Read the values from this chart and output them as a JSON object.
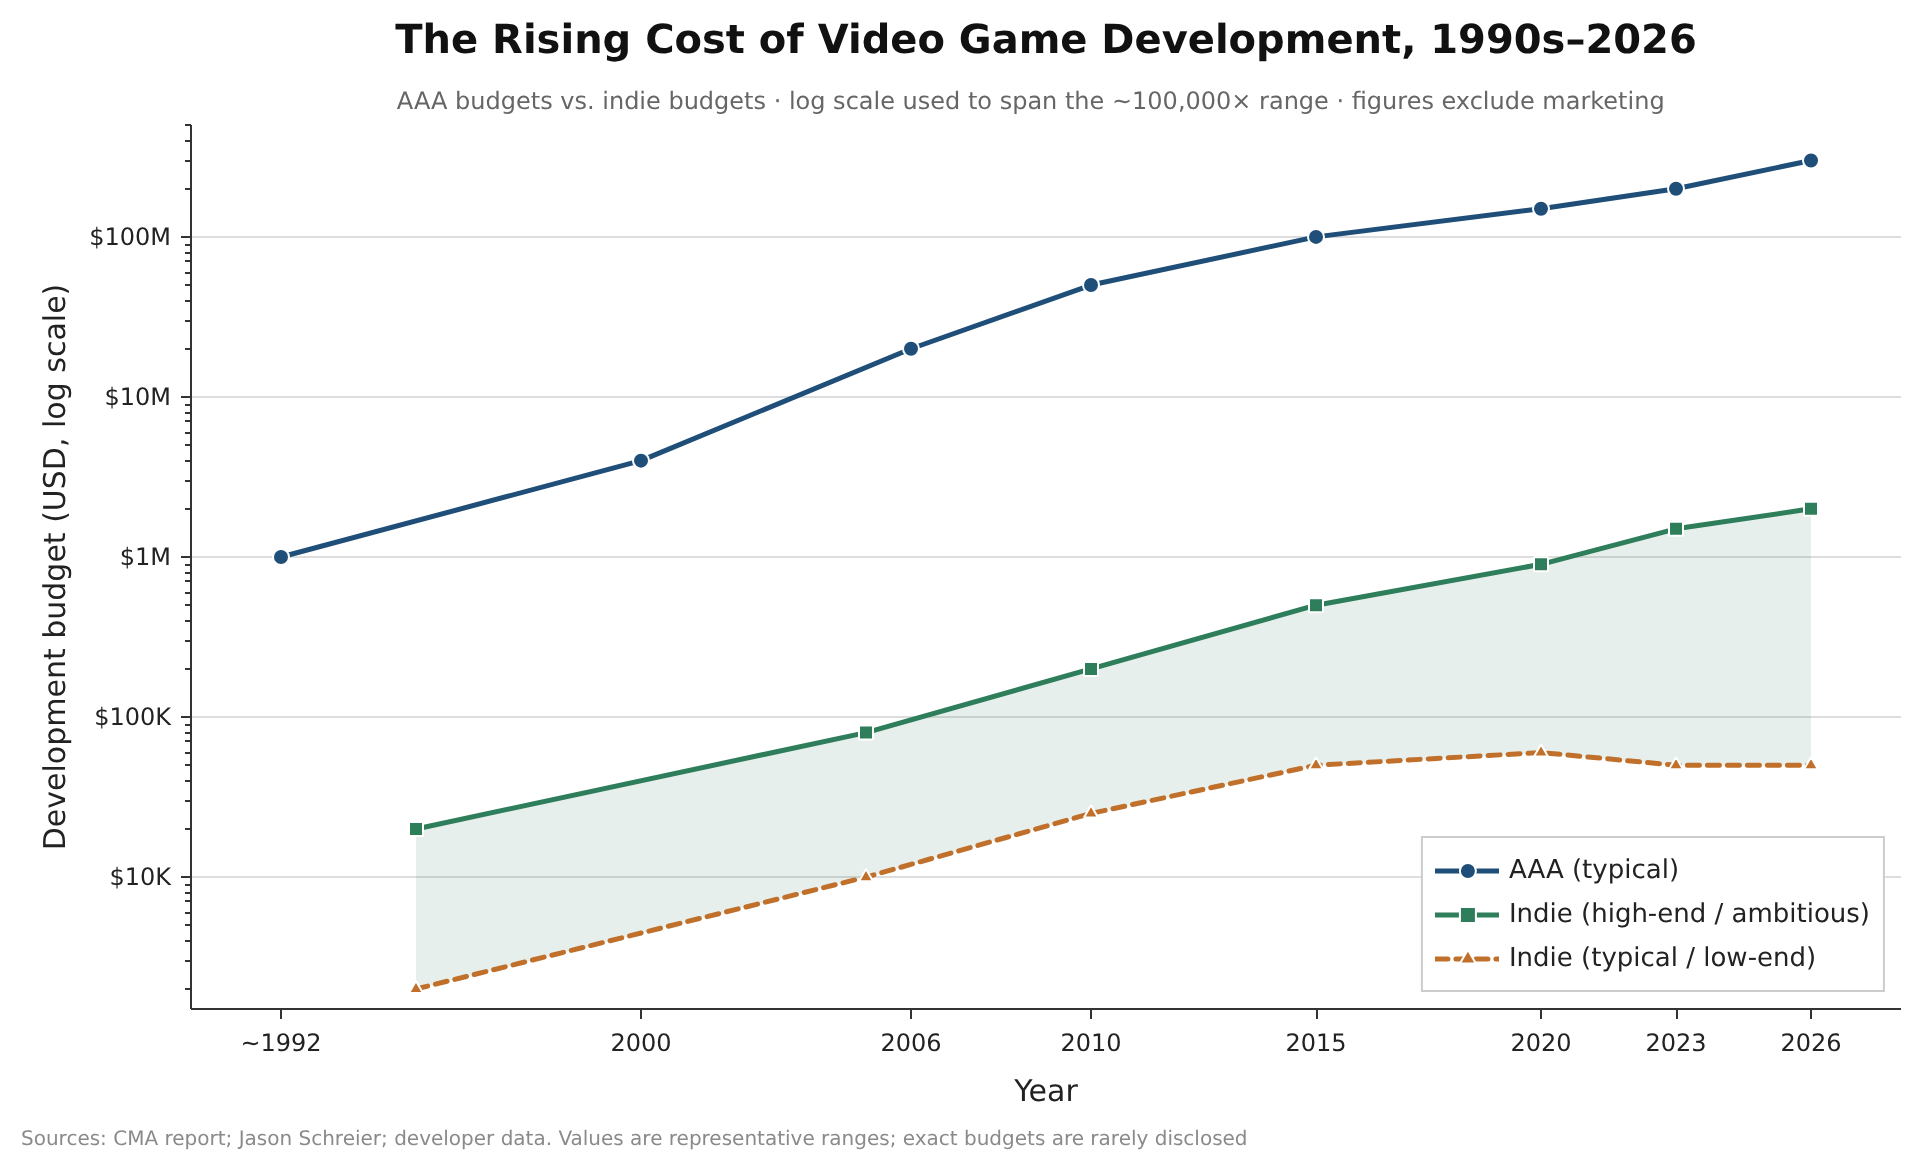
{
  "chart_data": {
    "type": "line",
    "title": "The Rising Cost of Video Game Development, 1990s–2026",
    "subtitle": "AAA budgets vs. indie budgets  ·  log scale used to span the ~100,000× range  ·  figures exclude marketing",
    "xlabel": "Year",
    "ylabel": "Development budget (USD, log scale)",
    "annotations": [
      "Sources: CMA report; Jason Schreier; developer data. Values are representative ranges; exact budgets are rarely disclosed"
    ],
    "series": [
      {
        "name": "AAA (typical)",
        "color": "#1f4e79",
        "marker": "circle",
        "line_style": "solid",
        "x": [
          1992,
          2000,
          2006,
          2010,
          2015,
          2020,
          2023,
          2026
        ],
        "values": [
          1000000,
          4000000,
          20000000,
          50000000,
          100000000,
          150000000,
          200000000,
          300000000
        ]
      },
      {
        "name": "Indie (high-end / ambitious)",
        "color": "#2e7d5b",
        "marker": "square",
        "line_style": "solid",
        "x": [
          1995,
          2005,
          2010,
          2015,
          2020,
          2023,
          2026
        ],
        "values": [
          20000,
          80000,
          200000,
          500000,
          900000,
          1500000,
          2000000
        ],
        "lower": [
          2000,
          10000,
          25000,
          50000,
          60000,
          50000,
          50000
        ],
        "upper": [
          20000,
          80000,
          200000,
          500000,
          900000,
          1500000,
          2000000
        ]
      },
      {
        "name": "Indie (typical / low-end)",
        "color": "#c0702a",
        "marker": "triangle",
        "line_style": "dashed",
        "x": [
          1995,
          2005,
          2010,
          2015,
          2020,
          2023,
          2026
        ],
        "values": [
          2000,
          10000,
          25000,
          50000,
          60000,
          50000,
          50000
        ]
      }
    ],
    "xlim": [
      1990,
      2028
    ],
    "ylim": [
      1500,
      500000000
    ],
    "xticks": [
      {
        "value": 1992,
        "label": "~1992"
      },
      2000,
      2006,
      2010,
      2015,
      2020,
      2023,
      2026
    ],
    "yticks": [
      {
        "value": 10000,
        "label": "$10K"
      },
      {
        "value": 100000,
        "label": "$100K"
      },
      {
        "value": 1000000,
        "label": "$1M"
      },
      {
        "value": 10000000,
        "label": "$10M"
      },
      {
        "value": 100000000,
        "label": "$100M"
      }
    ],
    "log": "y",
    "grid": "y",
    "legend": "bottom right"
  }
}
